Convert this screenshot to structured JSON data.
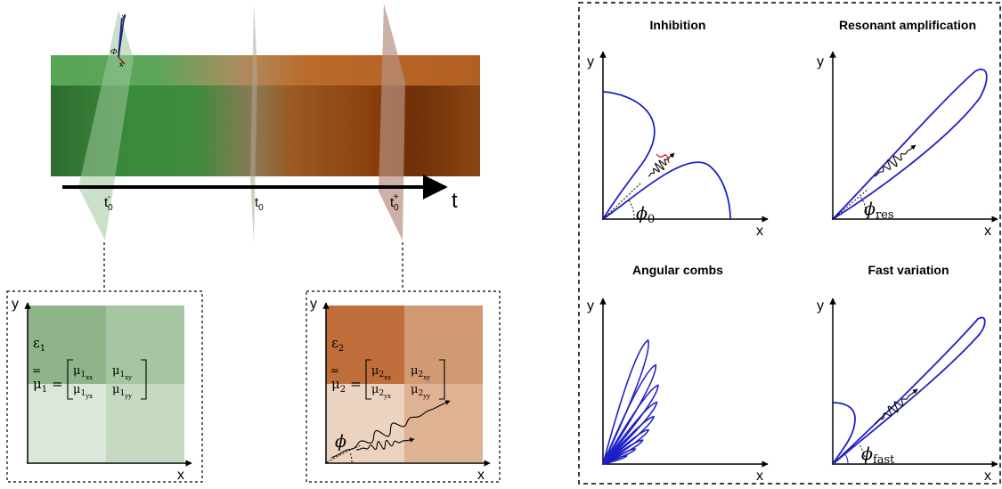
{
  "timeline": {
    "axis_label": "t",
    "tick_t0_minus": "t",
    "tick_t0_minus_sub": "0",
    "tick_t0_minus_sup": "-",
    "tick_t0": "t",
    "tick_t0_sub": "0",
    "tick_t0_plus": "t",
    "tick_t0_plus_sub": "0",
    "tick_t0_plus_sup": "+",
    "frame_phi": "Φ",
    "frame_x": "x",
    "frame_y": "y"
  },
  "media": [
    {
      "id": "medium-1",
      "y_label": "y",
      "x_label": "x",
      "eps": "ε",
      "eps_sub": "1",
      "mu_lhs": "μ",
      "mu_lhs_sub": "1",
      "equals": "=",
      "m_xx": "μ",
      "m_xx_sub": "1",
      "m_xx_subsub": "xx",
      "m_xy": "μ",
      "m_xy_sub": "1",
      "m_xy_subsub": "xy",
      "m_yx": "μ",
      "m_yx_sub": "1",
      "m_yx_subsub": "yx",
      "m_yy": "μ",
      "m_yy_sub": "1",
      "m_yy_subsub": "yy",
      "colors": [
        "#8fb48a",
        "#a6c5a2",
        "#dbe7d8",
        "#c6dac2"
      ]
    },
    {
      "id": "medium-2",
      "y_label": "y",
      "x_label": "x",
      "eps": "ε",
      "eps_sub": "2",
      "mu_lhs": "μ",
      "mu_lhs_sub": "2",
      "equals": "=",
      "m_xx": "μ",
      "m_xx_sub": "2",
      "m_xx_subsub": "xx",
      "m_xy": "μ",
      "m_xy_sub": "2",
      "m_xy_subsub": "xy",
      "m_yx": "μ",
      "m_yx_sub": "2",
      "m_yx_subsub": "yx",
      "m_yy": "μ",
      "m_yy_sub": "2",
      "m_yy_subsub": "yy",
      "phi": "ϕ",
      "colors": [
        "#c06e3c",
        "#d29a72",
        "#ecd3c0",
        "#dfb294"
      ]
    }
  ],
  "panels": [
    {
      "id": "inhibition",
      "title": "Inhibition",
      "y_label": "y",
      "x_label": "x",
      "angle": "ϕ",
      "angle_sub": "0"
    },
    {
      "id": "resonant",
      "title": "Resonant amplification",
      "y_label": "y",
      "x_label": "x",
      "angle": "ϕ",
      "angle_sub": "res"
    },
    {
      "id": "combs",
      "title": "Angular combs",
      "y_label": "y",
      "x_label": "x"
    },
    {
      "id": "fast",
      "title": "Fast variation",
      "y_label": "y",
      "x_label": "x",
      "angle": "ϕ",
      "angle_sub": "fast"
    }
  ],
  "colors": {
    "green": "#3d7a3a",
    "brown": "#8a4513",
    "curve": "#1f1fc8",
    "highlight": "#e02020"
  }
}
